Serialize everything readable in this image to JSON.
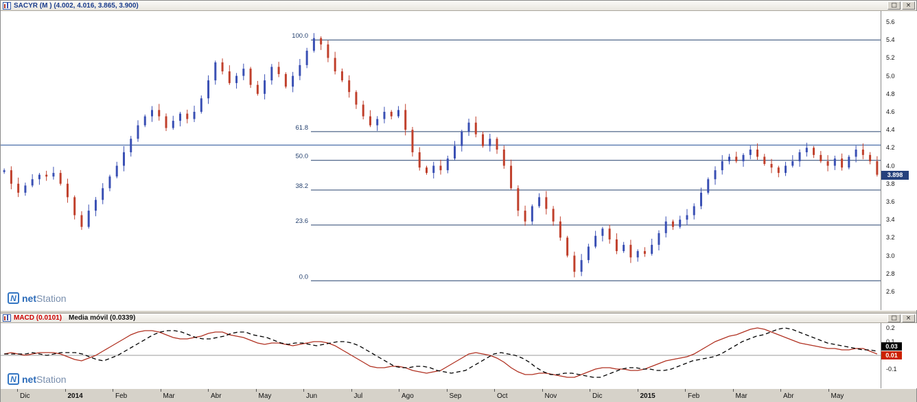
{
  "main_panel": {
    "title": "SACYR (M ) (4.002, 4.016, 3.865, 3.900)",
    "current_price": "3.898",
    "watermark": {
      "symbol": "N",
      "net": "net",
      "station": "Station"
    }
  },
  "macd_panel": {
    "title_macd": "MACD (0.0101)",
    "title_media": "Media móvil (0.0339)",
    "tag_signal": "0.03",
    "tag_macd": "0.01",
    "watermark": {
      "symbol": "N",
      "net": "net",
      "station": "Station"
    }
  },
  "icons": {
    "maximize": "□",
    "close": "×"
  },
  "colors": {
    "up_candle": "#3a50b4",
    "down_candle": "#c0402c",
    "fib_line": "#24406e",
    "horizontal_line": "#4a6ea9",
    "price_tag_bg": "#25417c",
    "macd_line": "#b03020",
    "signal_line": "#000000",
    "tag_signal_bg": "#000000",
    "tag_macd_bg": "#cc2200"
  },
  "chart_data": [
    {
      "type": "candlestick",
      "title": "SACYR (M)",
      "x_labels": [
        "Dic",
        "2014",
        "Feb",
        "Mar",
        "Abr",
        "May",
        "Jun",
        "Jul",
        "Ago",
        "Sep",
        "Oct",
        "Nov",
        "Dic",
        "2015",
        "Feb",
        "Mar",
        "Abr",
        "May"
      ],
      "ylim": [
        2.6,
        5.6
      ],
      "y_ticks": [
        5.6,
        5.4,
        5.2,
        5.0,
        4.8,
        4.6,
        4.4,
        4.2,
        4.0,
        3.8,
        3.6,
        3.4,
        3.2,
        3.0,
        2.8,
        2.6
      ],
      "last_price": 3.898,
      "horizontal_line_price": 4.23,
      "fib_levels": [
        {
          "label": "100.0",
          "price": 5.4
        },
        {
          "label": "61.8",
          "price": 4.38
        },
        {
          "label": "50.0",
          "price": 4.06
        },
        {
          "label": "38.2",
          "price": 3.73
        },
        {
          "label": "23.6",
          "price": 3.34
        },
        {
          "label": "0.0",
          "price": 2.72
        }
      ],
      "closes": [
        3.95,
        3.8,
        3.7,
        3.78,
        3.85,
        3.9,
        3.88,
        3.92,
        3.8,
        3.65,
        3.45,
        3.32,
        3.5,
        3.62,
        3.75,
        3.88,
        4.0,
        4.15,
        4.3,
        4.45,
        4.55,
        4.62,
        4.55,
        4.42,
        4.5,
        4.58,
        4.52,
        4.6,
        4.75,
        4.95,
        5.15,
        5.05,
        4.92,
        5.0,
        5.08,
        4.9,
        4.8,
        4.95,
        5.1,
        5.02,
        4.88,
        5.0,
        5.12,
        5.28,
        5.42,
        5.35,
        5.2,
        5.05,
        4.95,
        4.82,
        4.68,
        4.55,
        4.45,
        4.52,
        4.6,
        4.55,
        4.62,
        4.4,
        4.15,
        3.98,
        3.92,
        4.0,
        3.95,
        4.08,
        4.22,
        4.38,
        4.48,
        4.35,
        4.22,
        4.3,
        4.18,
        4.0,
        3.75,
        3.5,
        3.38,
        3.55,
        3.65,
        3.52,
        3.38,
        3.2,
        3.0,
        2.82,
        2.95,
        3.1,
        3.22,
        3.3,
        3.18,
        3.05,
        3.12,
        2.98,
        3.05,
        3.02,
        3.12,
        3.25,
        3.38,
        3.32,
        3.4,
        3.45,
        3.55,
        3.7,
        3.85,
        3.95,
        4.05,
        4.1,
        4.05,
        4.12,
        4.18,
        4.1,
        4.02,
        3.98,
        3.92,
        4.0,
        4.05,
        4.15,
        4.2,
        4.12,
        4.05,
        4.0,
        4.08,
        3.98,
        4.1,
        4.18,
        4.12,
        4.05,
        3.9
      ]
    },
    {
      "type": "line",
      "title": "MACD",
      "ylim": [
        -0.2,
        0.25
      ],
      "y_ticks": [
        0.2,
        0.1,
        0.0,
        -0.1
      ],
      "series": [
        {
          "name": "MACD (0.0101)",
          "style": "solid",
          "last_value": 0.0101,
          "values": [
            0.01,
            0.02,
            0.01,
            0.0,
            0.01,
            0.02,
            0.02,
            0.02,
            0.01,
            -0.01,
            -0.03,
            -0.04,
            -0.02,
            0.0,
            0.03,
            0.06,
            0.09,
            0.12,
            0.15,
            0.17,
            0.18,
            0.18,
            0.17,
            0.15,
            0.13,
            0.12,
            0.12,
            0.13,
            0.14,
            0.16,
            0.17,
            0.17,
            0.15,
            0.14,
            0.13,
            0.11,
            0.09,
            0.08,
            0.09,
            0.09,
            0.08,
            0.07,
            0.08,
            0.09,
            0.1,
            0.1,
            0.09,
            0.07,
            0.04,
            0.01,
            -0.02,
            -0.05,
            -0.08,
            -0.09,
            -0.09,
            -0.08,
            -0.08,
            -0.09,
            -0.11,
            -0.12,
            -0.13,
            -0.12,
            -0.11,
            -0.08,
            -0.05,
            -0.02,
            0.01,
            0.02,
            0.01,
            0.0,
            -0.02,
            -0.05,
            -0.09,
            -0.12,
            -0.14,
            -0.14,
            -0.13,
            -0.13,
            -0.14,
            -0.15,
            -0.16,
            -0.16,
            -0.14,
            -0.12,
            -0.1,
            -0.09,
            -0.09,
            -0.1,
            -0.1,
            -0.11,
            -0.11,
            -0.1,
            -0.08,
            -0.06,
            -0.04,
            -0.03,
            -0.02,
            -0.01,
            0.01,
            0.04,
            0.07,
            0.1,
            0.12,
            0.14,
            0.15,
            0.17,
            0.19,
            0.2,
            0.19,
            0.17,
            0.15,
            0.13,
            0.11,
            0.09,
            0.08,
            0.07,
            0.06,
            0.05,
            0.05,
            0.04,
            0.04,
            0.05,
            0.05,
            0.03,
            0.01
          ]
        },
        {
          "name": "Media móvil (0.0339)",
          "style": "dashed",
          "last_value": 0.0339,
          "values": [
            0.01,
            0.01,
            0.01,
            0.01,
            0.02,
            0.01,
            0.0,
            0.01,
            0.02,
            0.02,
            0.02,
            0.01,
            -0.01,
            -0.03,
            -0.04,
            -0.02,
            0.0,
            0.03,
            0.06,
            0.09,
            0.12,
            0.15,
            0.17,
            0.18,
            0.18,
            0.17,
            0.15,
            0.13,
            0.12,
            0.12,
            0.13,
            0.14,
            0.16,
            0.17,
            0.17,
            0.15,
            0.14,
            0.13,
            0.11,
            0.09,
            0.08,
            0.09,
            0.09,
            0.08,
            0.07,
            0.08,
            0.09,
            0.1,
            0.1,
            0.09,
            0.07,
            0.04,
            0.01,
            -0.02,
            -0.05,
            -0.08,
            -0.09,
            -0.09,
            -0.08,
            -0.08,
            -0.09,
            -0.11,
            -0.12,
            -0.13,
            -0.12,
            -0.11,
            -0.08,
            -0.05,
            -0.02,
            0.01,
            0.02,
            0.01,
            0.0,
            -0.02,
            -0.05,
            -0.09,
            -0.12,
            -0.14,
            -0.14,
            -0.13,
            -0.13,
            -0.14,
            -0.15,
            -0.16,
            -0.16,
            -0.14,
            -0.12,
            -0.1,
            -0.09,
            -0.09,
            -0.1,
            -0.1,
            -0.11,
            -0.11,
            -0.1,
            -0.08,
            -0.06,
            -0.04,
            -0.03,
            -0.02,
            -0.01,
            0.01,
            0.04,
            0.07,
            0.1,
            0.12,
            0.14,
            0.15,
            0.17,
            0.19,
            0.2,
            0.19,
            0.17,
            0.15,
            0.13,
            0.11,
            0.09,
            0.08,
            0.07,
            0.06,
            0.05,
            0.04,
            0.04,
            0.03
          ]
        }
      ]
    }
  ]
}
